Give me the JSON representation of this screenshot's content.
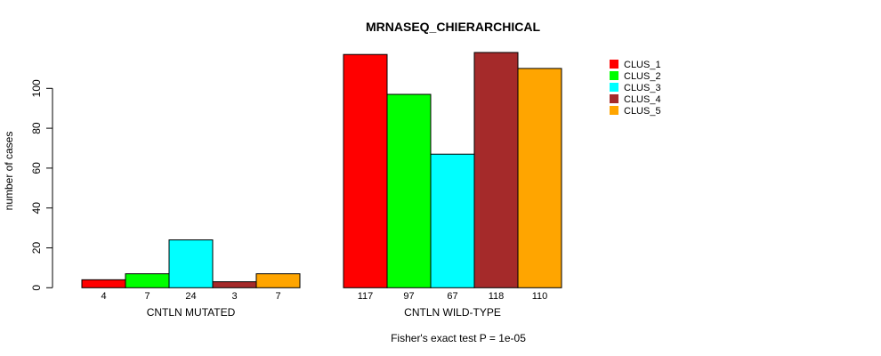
{
  "chart_data": {
    "type": "bar",
    "title": "MRNASEQ_CHIERARCHICAL",
    "ylabel": "number of cases",
    "xlabel": "Fisher's exact test P = 1e-05",
    "ylim": [
      0,
      120
    ],
    "yticks": [
      0,
      20,
      40,
      60,
      80,
      100
    ],
    "groups": [
      "CNTLN MUTATED",
      "CNTLN WILD-TYPE"
    ],
    "series": [
      {
        "name": "CLUS_1",
        "color": "#ff0000",
        "values": [
          4,
          117
        ]
      },
      {
        "name": "CLUS_2",
        "color": "#00ff00",
        "values": [
          7,
          97
        ]
      },
      {
        "name": "CLUS_3",
        "color": "#00ffff",
        "values": [
          24,
          67
        ]
      },
      {
        "name": "CLUS_4",
        "color": "#a52a2a",
        "values": [
          3,
          118
        ]
      },
      {
        "name": "CLUS_5",
        "color": "#ffa500",
        "values": [
          7,
          110
        ]
      }
    ],
    "legend_position": "top-right",
    "grid": false
  }
}
